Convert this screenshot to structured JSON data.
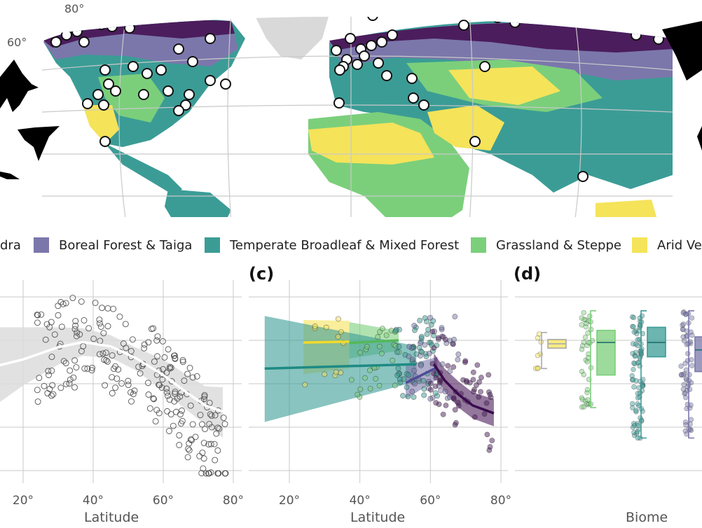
{
  "colors": {
    "tundra": "#4b1d5c",
    "boreal": "#7b77ab",
    "temperate": "#3b9c96",
    "grassland": "#7bcf7b",
    "arid": "#f5e35a",
    "ocean": "#ffffff",
    "landOther": "#d9d9d9",
    "grid": "#c9c9c9"
  },
  "map": {
    "grid_labels": [
      "80°",
      "60°"
    ]
  },
  "legend": {
    "items": [
      {
        "label": "dra",
        "color": "#4b1d5c"
      },
      {
        "label": "Boreal Forest & Taiga",
        "color": "#7b77ab"
      },
      {
        "label": "Temperate Broadleaf & Mixed Forest",
        "color": "#3b9c96"
      },
      {
        "label": "Grassland & Steppe",
        "color": "#7bcf7b"
      },
      {
        "label": "Arid Ve",
        "color": "#f5e35a"
      }
    ]
  },
  "panels": {
    "c_label": "(c)",
    "d_label": "(d)"
  },
  "chart_data": [
    {
      "type": "scatter",
      "title": "",
      "xlabel": "Latitude",
      "ylabel": "",
      "xlim": [
        12,
        82
      ],
      "xticks": [
        "20°",
        "40°",
        "60°",
        "80°"
      ],
      "xtick_values": [
        20,
        40,
        60,
        80
      ],
      "grid": true,
      "fit": {
        "x": [
          12,
          20,
          30,
          37,
          45,
          52,
          60,
          66,
          72,
          77
        ],
        "y": [
          0.7,
          0.78,
          0.92,
          0.98,
          0.93,
          0.8,
          0.6,
          0.42,
          0.25,
          0.18
        ]
      },
      "band": {
        "x": [
          12,
          20,
          30,
          37,
          45,
          52,
          60,
          66,
          72,
          77
        ],
        "lo": [
          0.25,
          0.48,
          0.72,
          0.82,
          0.8,
          0.66,
          0.42,
          0.22,
          0.03,
          -0.12
        ],
        "hi": [
          1.15,
          1.15,
          1.15,
          1.14,
          1.06,
          0.92,
          0.78,
          0.62,
          0.47,
          0.46
        ]
      }
    },
    {
      "type": "scatter",
      "title": "",
      "xlabel": "Latitude",
      "ylabel": "",
      "xlim": [
        12,
        82
      ],
      "xticks": [
        "20°",
        "40°",
        "60°",
        "80°"
      ],
      "xtick_values": [
        20,
        40,
        60,
        80
      ],
      "grid": true,
      "series": [
        {
          "color": "#f5e35a",
          "fit_x": [
            24,
            37
          ],
          "fit_y": [
            0.95,
            0.97
          ],
          "band_lo": [
            0.22,
            0.35
          ],
          "band_hi": [
            1.47,
            1.45
          ]
        },
        {
          "color": "#7bcf7b",
          "fit_x": [
            37,
            51
          ],
          "fit_y": [
            0.94,
            1.0
          ],
          "band_lo": [
            0.58,
            0.76
          ],
          "band_hi": [
            1.42,
            1.22
          ]
        },
        {
          "color": "#3b9c96",
          "fit_x": [
            13,
            56
          ],
          "fit_y": [
            0.35,
            0.45
          ],
          "band_lo": [
            -0.88,
            0.05
          ],
          "band_hi": [
            1.56,
            0.87
          ]
        },
        {
          "color": "#7b77ab",
          "fit_x": [
            53,
            62
          ],
          "fit_y": [
            0.02,
            0.38
          ],
          "band_lo": [
            -0.35,
            0.1
          ],
          "band_hi": [
            0.42,
            0.62
          ]
        },
        {
          "color": "#4b1d5c",
          "fit_x": [
            61,
            64,
            68,
            72,
            78
          ],
          "fit_y": [
            0.45,
            0.08,
            -0.25,
            -0.5,
            -0.68
          ],
          "band_lo": [
            0.25,
            -0.18,
            -0.55,
            -0.8,
            -0.98
          ],
          "band_hi": [
            0.7,
            0.35,
            0.05,
            -0.2,
            -0.35
          ]
        }
      ]
    },
    {
      "type": "box",
      "title": "",
      "xlabel": "Biome",
      "ylabel": "",
      "grid": true,
      "boxes": [
        {
          "color": "#f5e35a",
          "q1": 0.82,
          "median": 0.92,
          "q3": 1.02,
          "whisker_lo": 0.35,
          "whisker_hi": 1.18
        },
        {
          "color": "#7bcf7b",
          "q1": 0.2,
          "median": 0.95,
          "q3": 1.23,
          "whisker_lo": -0.55,
          "whisker_hi": 1.68
        },
        {
          "color": "#3b9c96",
          "q1": 0.62,
          "median": 0.95,
          "q3": 1.3,
          "whisker_lo": -1.25,
          "whisker_hi": 1.68
        },
        {
          "color": "#7b77ab",
          "q1": 0.28,
          "median": 0.78,
          "q3": 1.08,
          "whisker_lo": -1.25,
          "whisker_hi": 1.68
        }
      ]
    }
  ],
  "axis_titles": {
    "b": "Latitude",
    "c": "Latitude",
    "d": "Biome"
  }
}
